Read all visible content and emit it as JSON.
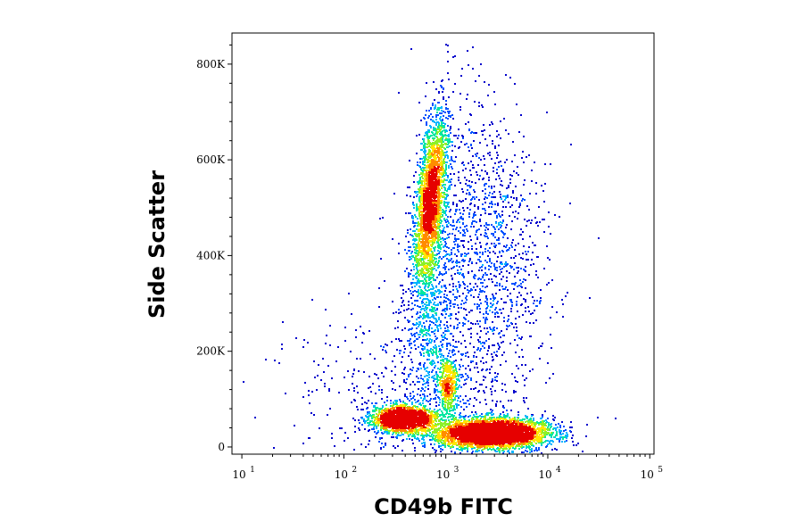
{
  "chart_data": {
    "type": "scatter",
    "subtype": "flow-cytometry-density-dot-plot",
    "title": "",
    "xlabel": "CD49b FITC",
    "ylabel": "Side Scatter",
    "x_scale": "log",
    "xlim": [
      8,
      110000
    ],
    "ylim": [
      -15000,
      865000
    ],
    "x_ticks": [
      {
        "base": "10",
        "exp": "1",
        "value": 10
      },
      {
        "base": "10",
        "exp": "2",
        "value": 100
      },
      {
        "base": "10",
        "exp": "3",
        "value": 1000
      },
      {
        "base": "10",
        "exp": "4",
        "value": 10000
      },
      {
        "base": "10",
        "exp": "5",
        "value": 100000
      }
    ],
    "y_ticks": [
      {
        "label": "0",
        "value": 0
      },
      {
        "label": "200K",
        "value": 200000
      },
      {
        "label": "400K",
        "value": 400000
      },
      {
        "label": "600K",
        "value": 600000
      },
      {
        "label": "800K",
        "value": 800000
      }
    ],
    "grid": false,
    "legend": "none",
    "density_colors": [
      "#0000cc",
      "#0050ff",
      "#00b4ff",
      "#00e6a0",
      "#8cf028",
      "#ffe600",
      "#ff8c00",
      "#e60000"
    ],
    "populations": [
      {
        "x_center": 700,
        "y_center": 520000,
        "log_x_spread": 0.07,
        "y_spread": 90000,
        "tilt": 0.22,
        "count": 2600
      },
      {
        "x_center": 380,
        "y_center": 60000,
        "log_x_spread": 0.16,
        "y_spread": 14000,
        "tilt": 0.0,
        "count": 1800
      },
      {
        "x_center": 2800,
        "y_center": 30000,
        "log_x_spread": 0.28,
        "y_spread": 16000,
        "tilt": 0.12,
        "count": 3800
      },
      {
        "x_center": 1050,
        "y_center": 130000,
        "log_x_spread": 0.05,
        "y_spread": 28000,
        "tilt": 0.0,
        "count": 450
      },
      {
        "x_center": 2200,
        "y_center": 380000,
        "log_x_spread": 0.32,
        "y_spread": 160000,
        "tilt": 0.0,
        "count": 1500
      },
      {
        "x_center": 700,
        "y_center": 250000,
        "log_x_spread": 0.12,
        "y_spread": 110000,
        "tilt": 0.0,
        "count": 700
      },
      {
        "x_center": 300,
        "y_center": 120000,
        "log_x_spread": 0.5,
        "y_spread": 90000,
        "tilt": 0.0,
        "count": 350
      }
    ]
  }
}
